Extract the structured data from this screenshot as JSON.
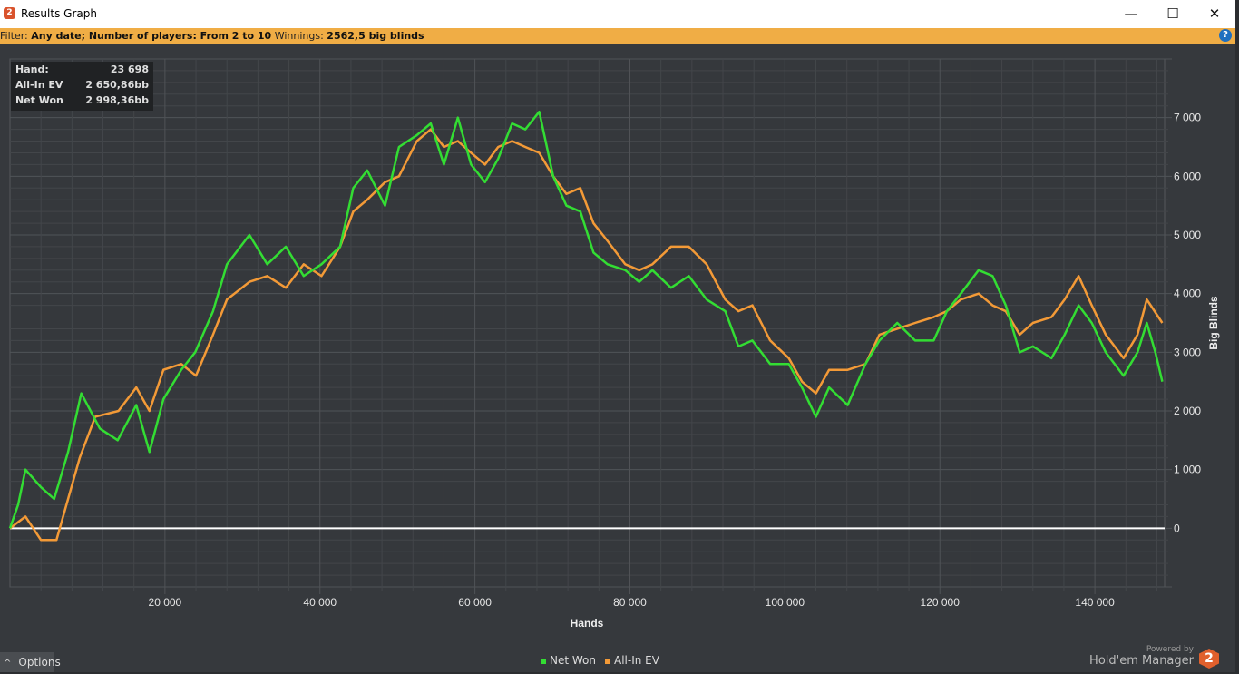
{
  "window": {
    "title": "Results Graph",
    "minimize": "—",
    "maximize": "☐",
    "close": "✕"
  },
  "filter": {
    "label": "Filter:",
    "value": "Any date; Number of players: From 2 to 10",
    "winnings_label": "Winnings:",
    "winnings_value": "2562,5 big blinds",
    "help": "?"
  },
  "tooltip": {
    "hand_label": "Hand:",
    "hand_value": "23 698",
    "ev_label": "All-In EV",
    "ev_value": "2 650,86bb",
    "net_label": "Net Won",
    "net_value": "2 998,36bb"
  },
  "options_label": "Options",
  "brand": {
    "powered": "Powered by",
    "name": "Hold'em Manager",
    "logo": "2"
  },
  "colors": {
    "net_won": "#33dd33",
    "all_in_ev": "#f39a37",
    "zero_line": "#ffffff"
  },
  "chart_data": {
    "type": "line",
    "xlabel": "Hands",
    "ylabel": "Big Blinds",
    "xlim": [
      0,
      149000
    ],
    "ylim": [
      -1000,
      8000
    ],
    "xticks": [
      20000,
      40000,
      60000,
      80000,
      100000,
      120000,
      140000
    ],
    "xtick_labels": [
      "20 000",
      "40 000",
      "60 000",
      "80 000",
      "100 000",
      "120 000",
      "140 000"
    ],
    "yticks": [
      0,
      1000,
      2000,
      3000,
      4000,
      5000,
      6000,
      7000
    ],
    "ytick_labels": [
      "0",
      "1 000",
      "2 000",
      "3 000",
      "4 000",
      "5 000",
      "6 000",
      "7 000"
    ],
    "grid": true,
    "legend": "bottom-center",
    "series": [
      {
        "name": "Net Won",
        "color": "#33dd33",
        "points": [
          [
            0,
            0
          ],
          [
            1050,
            400
          ],
          [
            2000,
            1000
          ],
          [
            4000,
            700
          ],
          [
            5700,
            500
          ],
          [
            7500,
            1300
          ],
          [
            9200,
            2300
          ],
          [
            11600,
            1700
          ],
          [
            13900,
            1500
          ],
          [
            16300,
            2100
          ],
          [
            18000,
            1300
          ],
          [
            19800,
            2200
          ],
          [
            22100,
            2700
          ],
          [
            23900,
            3000
          ],
          [
            26200,
            3700
          ],
          [
            28000,
            4500
          ],
          [
            30900,
            5000
          ],
          [
            33200,
            4500
          ],
          [
            35600,
            4800
          ],
          [
            37900,
            4300
          ],
          [
            40200,
            4500
          ],
          [
            42600,
            4800
          ],
          [
            44300,
            5800
          ],
          [
            46100,
            6100
          ],
          [
            48400,
            5500
          ],
          [
            50200,
            6500
          ],
          [
            52500,
            6700
          ],
          [
            54300,
            6900
          ],
          [
            56000,
            6200
          ],
          [
            57800,
            7000
          ],
          [
            59500,
            6200
          ],
          [
            61300,
            5900
          ],
          [
            63000,
            6300
          ],
          [
            64800,
            6900
          ],
          [
            66500,
            6800
          ],
          [
            68300,
            7100
          ],
          [
            70100,
            6000
          ],
          [
            71800,
            5500
          ],
          [
            73600,
            5400
          ],
          [
            75300,
            4700
          ],
          [
            77100,
            4500
          ],
          [
            79400,
            4400
          ],
          [
            81200,
            4200
          ],
          [
            82900,
            4400
          ],
          [
            85300,
            4100
          ],
          [
            87600,
            4300
          ],
          [
            89900,
            3900
          ],
          [
            92300,
            3700
          ],
          [
            94000,
            3100
          ],
          [
            95800,
            3200
          ],
          [
            98100,
            2800
          ],
          [
            100500,
            2800
          ],
          [
            102200,
            2400
          ],
          [
            104000,
            1900
          ],
          [
            105700,
            2400
          ],
          [
            108100,
            2100
          ],
          [
            110400,
            2800
          ],
          [
            112200,
            3200
          ],
          [
            114500,
            3500
          ],
          [
            116800,
            3200
          ],
          [
            119200,
            3200
          ],
          [
            120900,
            3700
          ],
          [
            122700,
            4000
          ],
          [
            125000,
            4400
          ],
          [
            126800,
            4300
          ],
          [
            128500,
            3800
          ],
          [
            130300,
            3000
          ],
          [
            132000,
            3100
          ],
          [
            134400,
            2900
          ],
          [
            136100,
            3300
          ],
          [
            137900,
            3800
          ],
          [
            139600,
            3500
          ],
          [
            141400,
            3000
          ],
          [
            143700,
            2600
          ],
          [
            145500,
            3000
          ],
          [
            146700,
            3500
          ],
          [
            147800,
            3000
          ],
          [
            148700,
            2500
          ]
        ]
      },
      {
        "name": "All-In EV",
        "color": "#f39a37",
        "points": [
          [
            0,
            0
          ],
          [
            2000,
            200
          ],
          [
            4000,
            -200
          ],
          [
            6000,
            -200
          ],
          [
            7500,
            500
          ],
          [
            9000,
            1200
          ],
          [
            11000,
            1900
          ],
          [
            14000,
            2000
          ],
          [
            16300,
            2400
          ],
          [
            18000,
            2000
          ],
          [
            19800,
            2700
          ],
          [
            22100,
            2800
          ],
          [
            24000,
            2600
          ],
          [
            26200,
            3300
          ],
          [
            28000,
            3900
          ],
          [
            30900,
            4200
          ],
          [
            33200,
            4300
          ],
          [
            35600,
            4100
          ],
          [
            37900,
            4500
          ],
          [
            40200,
            4300
          ],
          [
            42600,
            4800
          ],
          [
            44300,
            5400
          ],
          [
            46100,
            5600
          ],
          [
            48400,
            5900
          ],
          [
            50200,
            6000
          ],
          [
            52500,
            6600
          ],
          [
            54300,
            6800
          ],
          [
            56000,
            6500
          ],
          [
            57800,
            6600
          ],
          [
            59500,
            6400
          ],
          [
            61300,
            6200
          ],
          [
            63000,
            6500
          ],
          [
            64800,
            6600
          ],
          [
            66500,
            6500
          ],
          [
            68300,
            6400
          ],
          [
            70100,
            6000
          ],
          [
            71800,
            5700
          ],
          [
            73600,
            5800
          ],
          [
            75300,
            5200
          ],
          [
            77100,
            4900
          ],
          [
            79400,
            4500
          ],
          [
            81200,
            4400
          ],
          [
            82900,
            4500
          ],
          [
            85300,
            4800
          ],
          [
            87600,
            4800
          ],
          [
            89900,
            4500
          ],
          [
            92300,
            3900
          ],
          [
            94000,
            3700
          ],
          [
            95800,
            3800
          ],
          [
            98100,
            3200
          ],
          [
            100500,
            2900
          ],
          [
            102200,
            2500
          ],
          [
            104000,
            2300
          ],
          [
            105700,
            2700
          ],
          [
            108100,
            2700
          ],
          [
            110400,
            2800
          ],
          [
            112200,
            3300
          ],
          [
            114500,
            3400
          ],
          [
            116800,
            3500
          ],
          [
            119200,
            3600
          ],
          [
            120900,
            3700
          ],
          [
            122700,
            3900
          ],
          [
            125000,
            4000
          ],
          [
            126800,
            3800
          ],
          [
            128500,
            3700
          ],
          [
            130300,
            3300
          ],
          [
            132000,
            3500
          ],
          [
            134400,
            3600
          ],
          [
            136100,
            3900
          ],
          [
            137900,
            4300
          ],
          [
            139600,
            3800
          ],
          [
            141400,
            3300
          ],
          [
            143700,
            2900
          ],
          [
            145500,
            3300
          ],
          [
            146700,
            3900
          ],
          [
            148700,
            3500
          ]
        ]
      }
    ]
  }
}
